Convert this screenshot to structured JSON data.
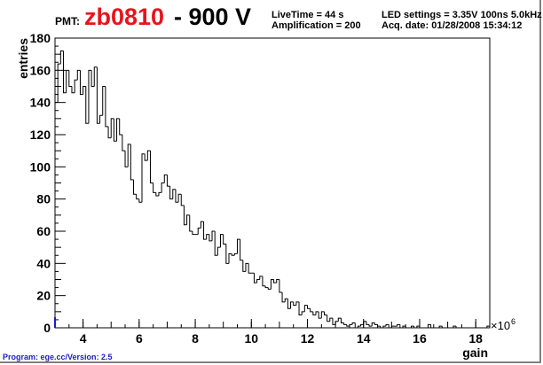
{
  "header": {
    "pmt_label": "PMT:",
    "pmt_id": "zb0810",
    "voltage": "- 900 V",
    "livetime": "LiveTime = 44 s",
    "amplification": "Amplification = 200",
    "led_settings": "LED settings = 3.35V 100ns 5.0kHz",
    "acq_date": "Acq. date:  01/28/2008 15:34:12"
  },
  "footer": {
    "program": "Program: ege.cc/Version: 2.5"
  },
  "colors": {
    "pmt_id": "#e8141c",
    "program_text": "#2020c0",
    "hist_line": "#000000",
    "frame_shadow": "#808080"
  },
  "chart_data": {
    "type": "step",
    "xlabel": "gain",
    "ylabel": "entries",
    "x_multiplier_label": "×10",
    "x_multiplier_exp": "6",
    "xlim": [
      3.0,
      18.5
    ],
    "ylim": [
      0,
      180
    ],
    "x_ticks": [
      4,
      6,
      8,
      10,
      12,
      14,
      16,
      18
    ],
    "y_ticks": [
      0,
      20,
      40,
      60,
      80,
      100,
      120,
      140,
      160,
      180
    ],
    "bin_start": 3.0,
    "bin_width": 0.1,
    "values": [
      140,
      164,
      172,
      146,
      160,
      150,
      146,
      154,
      160,
      145,
      150,
      127,
      160,
      150,
      162,
      127,
      132,
      150,
      125,
      118,
      130,
      116,
      130,
      120,
      110,
      100,
      114,
      92,
      83,
      80,
      78,
      108,
      104,
      110,
      90,
      84,
      82,
      84,
      90,
      95,
      88,
      80,
      86,
      78,
      83,
      76,
      64,
      70,
      60,
      58,
      58,
      62,
      66,
      55,
      58,
      54,
      60,
      45,
      50,
      58,
      52,
      40,
      46,
      45,
      46,
      55,
      42,
      35,
      40,
      34,
      34,
      28,
      30,
      32,
      26,
      25,
      24,
      30,
      28,
      30,
      22,
      16,
      18,
      12,
      16,
      14,
      16,
      8,
      10,
      14,
      12,
      10,
      8,
      10,
      6,
      10,
      8,
      4,
      6,
      2,
      4,
      6,
      3,
      2,
      1,
      2,
      3,
      0,
      1,
      2,
      4,
      2,
      1,
      3,
      2,
      1,
      0,
      1,
      2,
      0,
      1,
      1,
      2,
      0,
      1,
      0,
      0,
      1,
      0,
      1,
      0,
      0,
      0,
      2,
      0,
      0,
      0,
      1,
      0,
      0,
      0,
      0,
      1,
      0,
      0,
      0,
      0,
      0,
      0,
      0,
      0,
      0,
      0,
      0,
      1,
      0,
      0,
      0,
      0,
      0,
      0,
      0,
      0,
      0,
      0,
      0,
      0,
      0,
      0,
      0,
      0,
      0,
      0,
      1,
      0,
      0,
      0,
      0,
      0,
      0,
      0,
      0,
      1,
      0,
      0,
      0,
      0,
      0,
      0,
      0,
      0,
      0,
      0,
      0,
      0,
      1,
      0,
      0,
      0,
      0,
      0,
      0,
      1,
      0,
      0,
      0,
      0,
      0,
      0,
      0,
      0,
      0,
      0,
      0,
      0,
      0,
      0,
      0,
      0,
      0,
      0,
      0,
      0,
      0,
      0,
      0,
      0,
      0,
      0,
      0,
      0,
      0,
      0,
      0,
      0,
      0,
      0,
      0,
      0,
      0,
      0,
      0,
      0,
      0,
      0,
      0,
      0,
      0,
      0,
      0,
      0,
      0,
      0,
      0,
      0,
      0,
      0,
      0,
      0,
      0,
      0,
      0,
      0,
      0,
      0,
      0,
      0,
      0,
      0,
      0,
      0,
      0,
      0,
      0,
      0,
      0,
      0,
      0,
      0,
      0,
      0,
      0,
      0
    ]
  }
}
